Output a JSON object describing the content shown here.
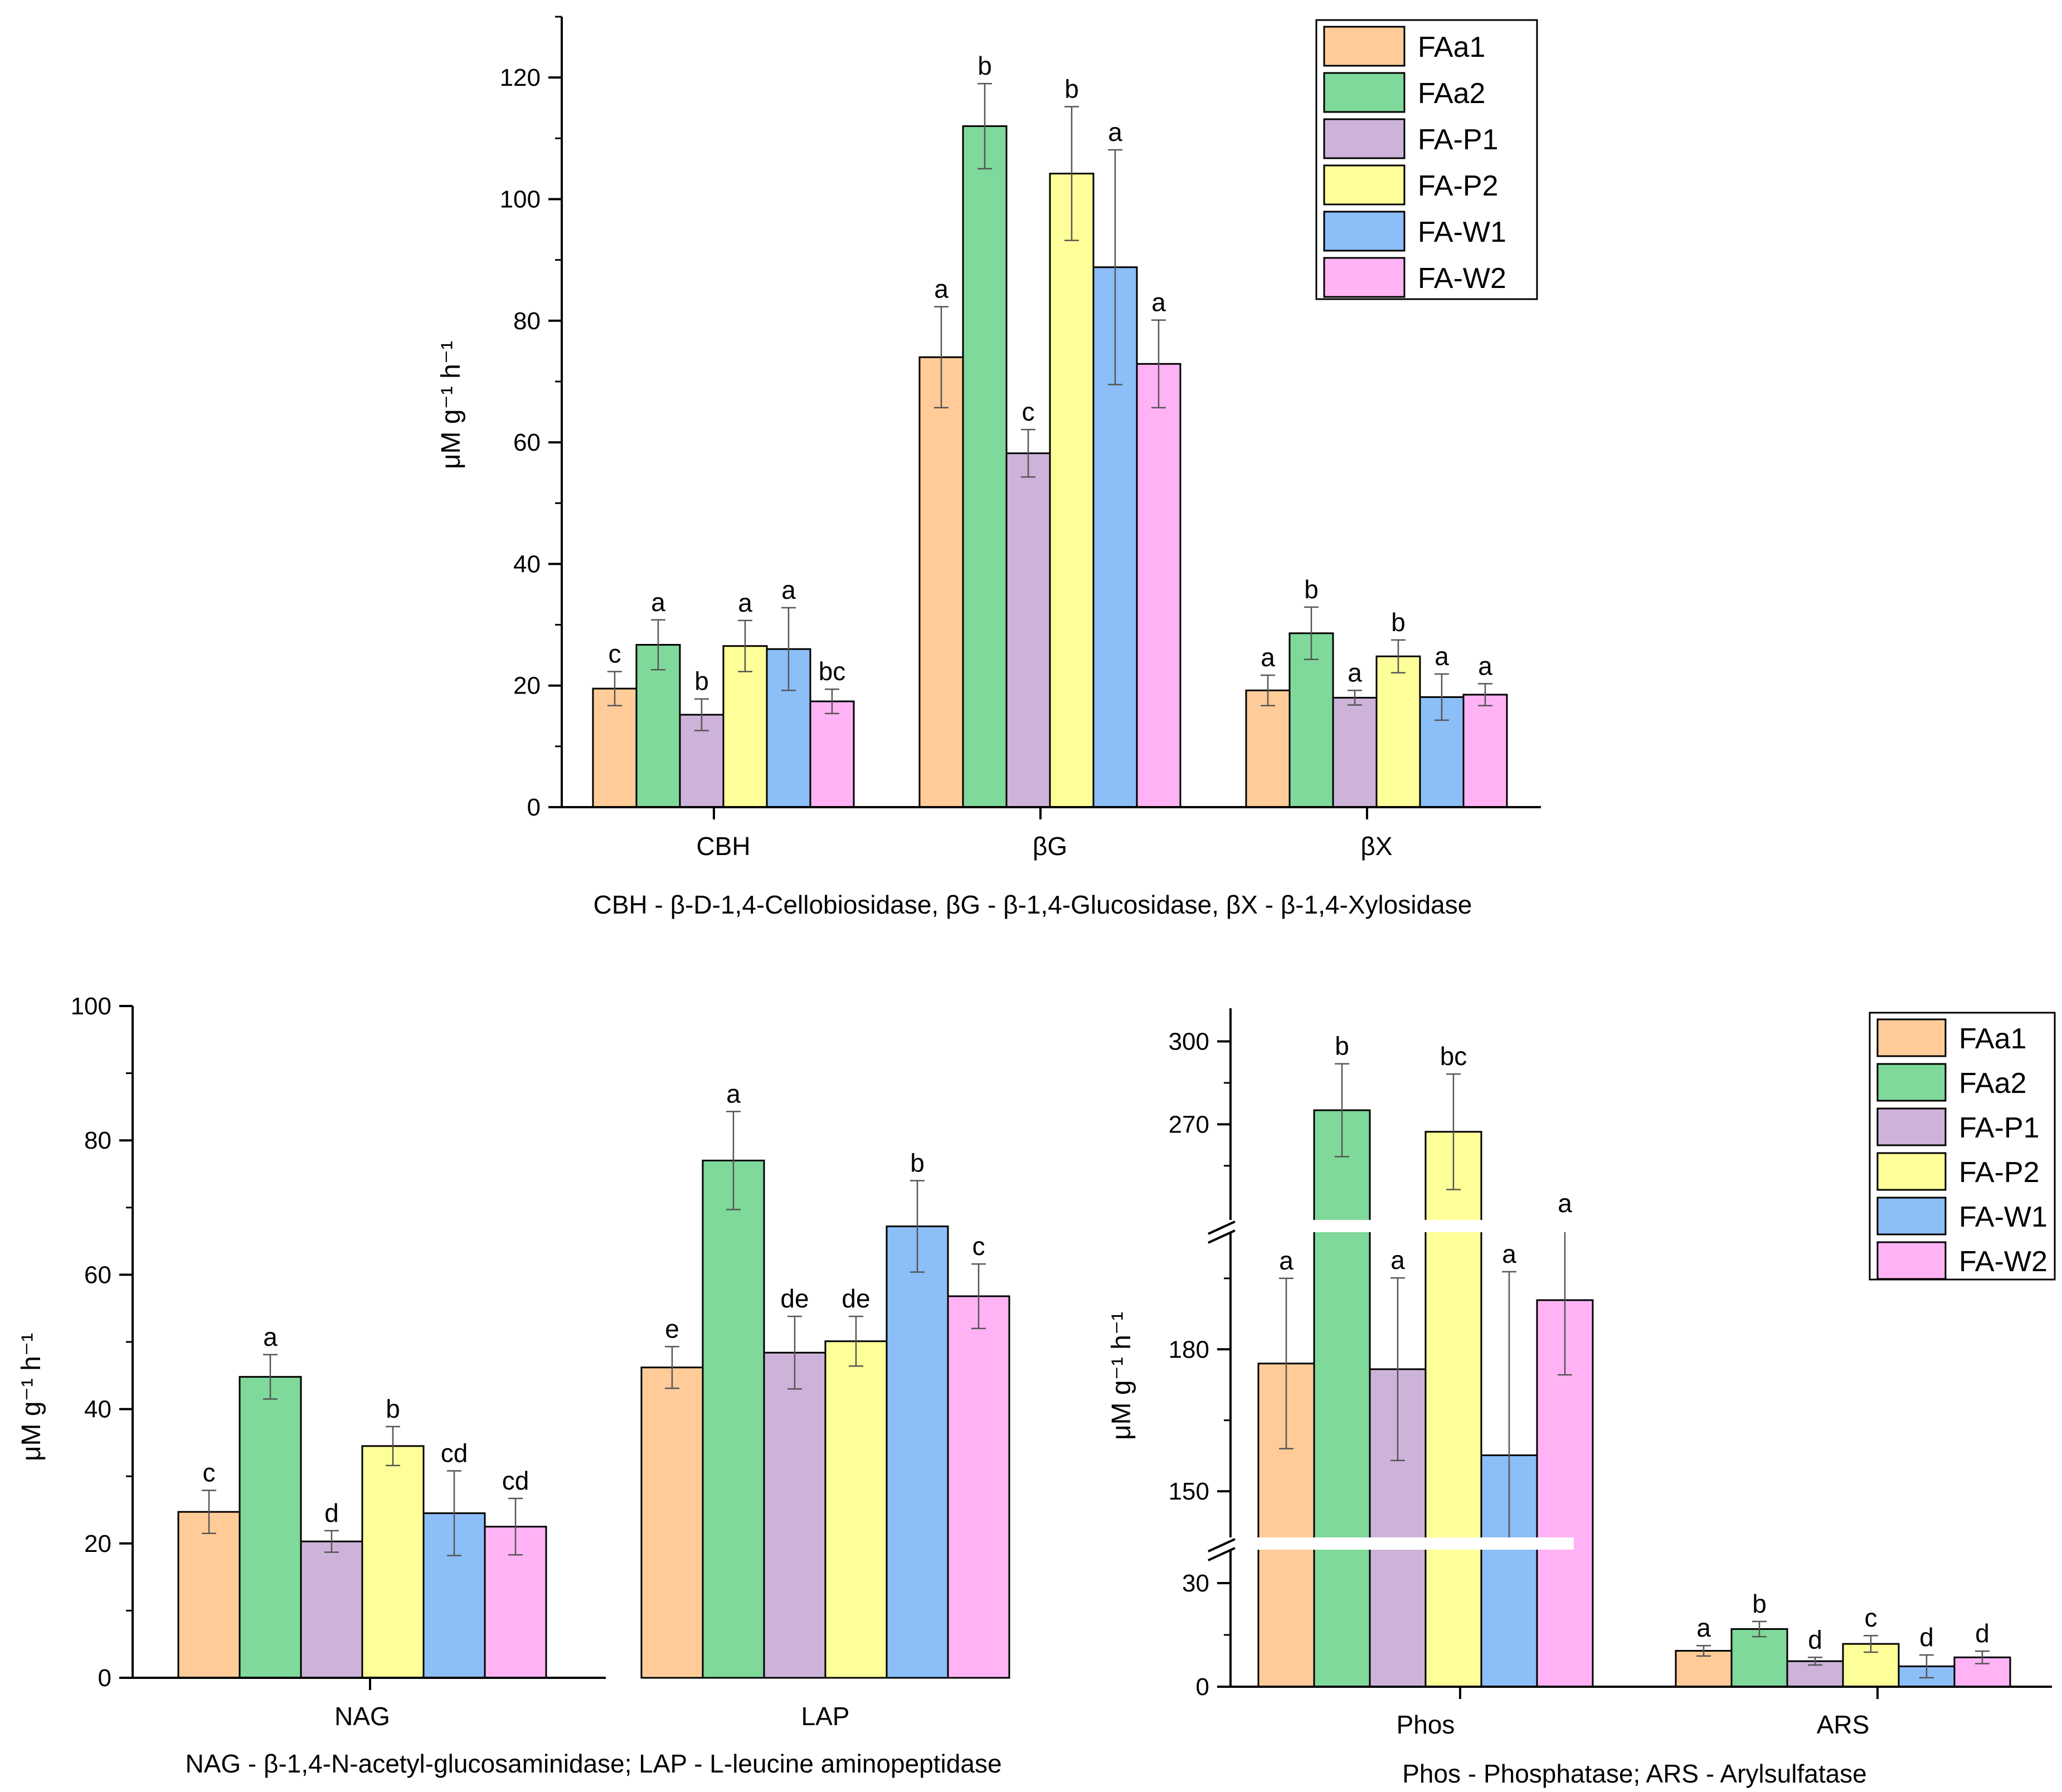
{
  "colors": {
    "FAa1": "#FFCC99",
    "FAa2": "#7FD99A",
    "FA-P1": "#CDB3D9",
    "FA-P2": "#FFFF99",
    "FA-W1": "#8CBEF7",
    "FA-W2": "#FFB3F5",
    "axis": "#000000",
    "error": "#555555"
  },
  "chart_data": [
    {
      "id": "top",
      "type": "bar",
      "ylabel": "μM g⁻¹ h⁻¹",
      "ylim": [
        0,
        130
      ],
      "yticks": [
        0,
        20,
        40,
        60,
        80,
        100,
        120
      ],
      "categories": [
        "CBH",
        "βG",
        "βX"
      ],
      "caption": "CBH - β-D-1,4-Cellobiosidase, βG - β-1,4-Glucosidase, βX - β-1,4-Xylosidase",
      "legend": [
        "FAa1",
        "FAa2",
        "FA-P1",
        "FA-P2",
        "FA-W1",
        "FA-W2"
      ],
      "legend_position": "top-right",
      "series": [
        {
          "name": "FAa1",
          "values": [
            19.5,
            74,
            19.2
          ],
          "errors": [
            2.8,
            8.3,
            2.5
          ],
          "labels": [
            "c",
            "a",
            "a"
          ]
        },
        {
          "name": "FAa2",
          "values": [
            26.7,
            112,
            28.6
          ],
          "errors": [
            4.1,
            7,
            4.3
          ],
          "labels": [
            "a",
            "b",
            "b"
          ]
        },
        {
          "name": "FA-P1",
          "values": [
            15.2,
            58.2,
            18
          ],
          "errors": [
            2.6,
            3.9,
            1.2
          ],
          "labels": [
            "b",
            "c",
            "a"
          ]
        },
        {
          "name": "FA-P2",
          "values": [
            26.5,
            104.2,
            24.8
          ],
          "errors": [
            4.2,
            11,
            2.7
          ],
          "labels": [
            "a",
            "b",
            "b"
          ]
        },
        {
          "name": "FA-W1",
          "values": [
            26,
            88.8,
            18.1
          ],
          "errors": [
            6.8,
            19.3,
            3.8
          ],
          "labels": [
            "a",
            "a",
            "a"
          ]
        },
        {
          "name": "FA-W2",
          "values": [
            17.4,
            72.9,
            18.5
          ],
          "errors": [
            2,
            7.2,
            1.8
          ],
          "labels": [
            "bc",
            "a",
            "a"
          ]
        }
      ]
    },
    {
      "id": "bottom-left",
      "type": "bar",
      "ylabel": "μM g⁻¹ h⁻¹",
      "ylim": [
        0,
        100
      ],
      "yticks": [
        0,
        20,
        40,
        60,
        80,
        100
      ],
      "categories": [
        "NAG",
        "LAP"
      ],
      "caption": "NAG - β-1,4-N-acetyl-glucosaminidase; LAP - L-leucine aminopeptidase",
      "series": [
        {
          "name": "FAa1",
          "values": [
            24.7,
            46.2
          ],
          "errors": [
            3.2,
            3.1
          ],
          "labels": [
            "c",
            "e"
          ]
        },
        {
          "name": "FAa2",
          "values": [
            44.8,
            77
          ],
          "errors": [
            3.3,
            7.3
          ],
          "labels": [
            "a",
            "a"
          ]
        },
        {
          "name": "FA-P1",
          "values": [
            20.3,
            48.4
          ],
          "errors": [
            1.6,
            5.4
          ],
          "labels": [
            "d",
            "de"
          ]
        },
        {
          "name": "FA-P2",
          "values": [
            34.5,
            50.1
          ],
          "errors": [
            2.9,
            3.7
          ],
          "labels": [
            "b",
            "de"
          ]
        },
        {
          "name": "FA-W1",
          "values": [
            24.5,
            67.2
          ],
          "errors": [
            6.3,
            6.8
          ],
          "labels": [
            "cd",
            "b"
          ]
        },
        {
          "name": "FA-W2",
          "values": [
            22.5,
            56.8
          ],
          "errors": [
            4.2,
            4.8
          ],
          "labels": [
            "cd",
            "c"
          ]
        }
      ]
    },
    {
      "id": "bottom-right",
      "type": "bar",
      "ylabel": "μM g⁻¹ h⁻¹",
      "axis_break": true,
      "segments": [
        {
          "range": [
            0,
            40
          ],
          "ticks": [
            0,
            30
          ]
        },
        {
          "range": [
            140,
            205
          ],
          "ticks": [
            150,
            180
          ]
        },
        {
          "range": [
            235,
            312
          ],
          "ticks": [
            270,
            300
          ]
        }
      ],
      "categories": [
        "Phos",
        "ARS"
      ],
      "caption": "Phos - Phosphatase; ARS - Arylsulfatase",
      "legend": [
        "FAa1",
        "FAa2",
        "FA-P1",
        "FA-P2",
        "FA-W1",
        "FA-W2"
      ],
      "legend_position": "top-right",
      "series": [
        {
          "name": "FAa1",
          "values": [
            177,
            10.4
          ],
          "errors": [
            18,
            1.5
          ],
          "labels": [
            "a",
            "a"
          ]
        },
        {
          "name": "FAa2",
          "values": [
            275.1,
            16.7
          ],
          "errors": [
            16.8,
            2.2
          ],
          "labels": [
            "b",
            "b"
          ]
        },
        {
          "name": "FA-P1",
          "values": [
            175.8,
            7.4
          ],
          "errors": [
            19.3,
            1.1
          ],
          "labels": [
            "a",
            "d"
          ]
        },
        {
          "name": "FA-P2",
          "values": [
            267.3,
            12.4
          ],
          "errors": [
            20.9,
            2.4
          ],
          "labels": [
            "bc",
            "c"
          ]
        },
        {
          "name": "FA-W1",
          "values": [
            157.6,
            5.9
          ],
          "errors": [
            38.8,
            3.3
          ],
          "labels": [
            "a",
            "d"
          ]
        },
        {
          "name": "FA-W2",
          "values": [
            190.4,
            8.5
          ],
          "errors": [
            15.8,
            1.8
          ],
          "labels": [
            "a",
            "d"
          ]
        }
      ]
    }
  ]
}
